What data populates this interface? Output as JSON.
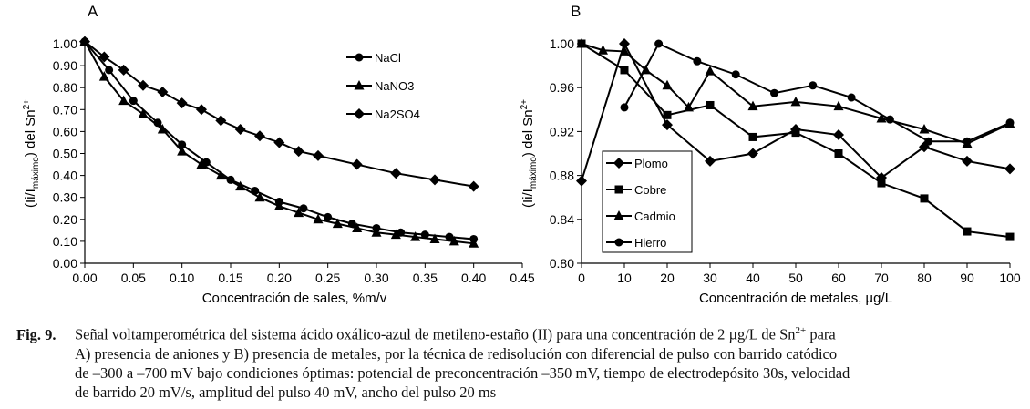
{
  "chart_data": [
    {
      "panel": "A",
      "type": "line",
      "title": "",
      "xlabel": "Concentración de sales, %m/v",
      "ylabel": "(Ii/Imáximo) del Sn2+",
      "xlim": [
        0,
        0.45
      ],
      "ylim": [
        0,
        1.0
      ],
      "x_ticks": [
        "0.00",
        "0.05",
        "0.10",
        "0.15",
        "0.20",
        "0.25",
        "0.30",
        "0.35",
        "0.40",
        "0.45"
      ],
      "y_ticks": [
        "0.00",
        "0.10",
        "0.20",
        "0.30",
        "0.40",
        "0.50",
        "0.60",
        "0.70",
        "0.80",
        "0.90",
        "1.00"
      ],
      "legend_position": "top-right",
      "series": [
        {
          "name": "NaCl",
          "marker": "circle",
          "x": [
            0.0,
            0.025,
            0.05,
            0.075,
            0.1,
            0.125,
            0.15,
            0.175,
            0.2,
            0.225,
            0.25,
            0.275,
            0.3,
            0.325,
            0.35,
            0.375,
            0.4
          ],
          "y": [
            1.01,
            0.88,
            0.74,
            0.64,
            0.54,
            0.46,
            0.38,
            0.33,
            0.28,
            0.25,
            0.21,
            0.18,
            0.16,
            0.14,
            0.13,
            0.12,
            0.11
          ]
        },
        {
          "name": "NaNO3",
          "marker": "triangle",
          "x": [
            0.0,
            0.02,
            0.04,
            0.06,
            0.08,
            0.1,
            0.12,
            0.14,
            0.16,
            0.18,
            0.2,
            0.22,
            0.24,
            0.26,
            0.28,
            0.3,
            0.32,
            0.34,
            0.36,
            0.38,
            0.4
          ],
          "y": [
            1.01,
            0.85,
            0.74,
            0.68,
            0.61,
            0.51,
            0.45,
            0.4,
            0.35,
            0.3,
            0.26,
            0.23,
            0.2,
            0.18,
            0.16,
            0.14,
            0.13,
            0.12,
            0.11,
            0.1,
            0.09
          ]
        },
        {
          "name": "Na2SO4",
          "marker": "diamond",
          "x": [
            0.0,
            0.02,
            0.04,
            0.06,
            0.08,
            0.1,
            0.12,
            0.14,
            0.16,
            0.18,
            0.2,
            0.22,
            0.24,
            0.28,
            0.32,
            0.36,
            0.4
          ],
          "y": [
            1.01,
            0.94,
            0.88,
            0.81,
            0.78,
            0.73,
            0.7,
            0.65,
            0.61,
            0.58,
            0.55,
            0.51,
            0.49,
            0.45,
            0.41,
            0.38,
            0.35
          ]
        }
      ]
    },
    {
      "panel": "B",
      "type": "line",
      "title": "",
      "xlabel": "Concentración de metales, µg/L",
      "ylabel": "(Ii/Imáximo) del Sn2+",
      "xlim": [
        0,
        100
      ],
      "ylim": [
        0.8,
        1.0
      ],
      "x_ticks": [
        "0",
        "10",
        "20",
        "30",
        "40",
        "50",
        "60",
        "70",
        "80",
        "90",
        "100"
      ],
      "y_ticks": [
        "0.80",
        "0.84",
        "0.88",
        "0.92",
        "0.96",
        "1.00"
      ],
      "legend_position": "bottom-left",
      "series": [
        {
          "name": "Plomo",
          "marker": "diamond",
          "x": [
            0,
            10,
            20,
            30,
            40,
            50,
            60,
            70,
            80,
            90,
            100
          ],
          "y": [
            0.875,
            1.0,
            0.926,
            0.893,
            0.9,
            0.922,
            0.917,
            0.878,
            0.906,
            0.893,
            0.886
          ]
        },
        {
          "name": "Cobre",
          "marker": "square",
          "x": [
            0,
            10,
            20,
            30,
            40,
            50,
            60,
            70,
            80,
            90,
            100
          ],
          "y": [
            1.0,
            0.976,
            0.935,
            0.944,
            0.915,
            0.919,
            0.9,
            0.873,
            0.859,
            0.829,
            0.824
          ]
        },
        {
          "name": "Cadmio",
          "marker": "triangle",
          "x": [
            0,
            5,
            10,
            15,
            20,
            25,
            30,
            40,
            50,
            60,
            70,
            80,
            90,
            100
          ],
          "y": [
            1.0,
            0.994,
            0.993,
            0.976,
            0.962,
            0.942,
            0.975,
            0.943,
            0.947,
            0.943,
            0.932,
            0.922,
            0.909,
            0.927
          ]
        },
        {
          "name": "Hierro",
          "marker": "circle",
          "x": [
            10,
            18,
            27,
            36,
            45,
            54,
            63,
            72,
            81,
            90,
            100
          ],
          "y": [
            0.942,
            1.0,
            0.984,
            0.972,
            0.955,
            0.962,
            0.951,
            0.931,
            0.911,
            0.911,
            0.928
          ]
        }
      ]
    }
  ],
  "caption": {
    "label": "Fig. 9.",
    "line1_a": "Señal voltamperométrica del sistema ácido oxálico-azul de metileno-estaño (II) para una concentración de 2 µg/L de Sn",
    "line1_sup": "2+",
    "line1_b": " para",
    "line2": "A) presencia de aniones y B) presencia de metales, por la técnica de redisolución con diferencial de pulso con barrido catódico",
    "line3": "de –300 a –700 mV bajo condiciones óptimas: potencial de preconcentración –350 mV, tiempo de electrodepósito 30s, velocidad",
    "line4": "de barrido 20 mV/s, amplitud del pulso 40 mV, ancho del pulso 20 ms"
  },
  "colors": {
    "ink": "#000000",
    "background": "#ffffff"
  }
}
